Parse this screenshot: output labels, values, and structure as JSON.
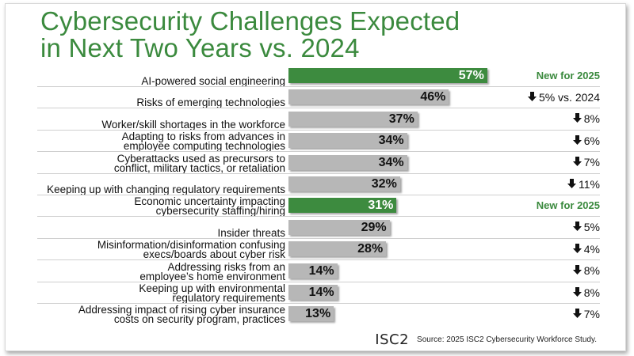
{
  "title_line1": "Cybersecurity Challenges Expected",
  "title_line2": "in Next Two Years vs. 2024",
  "footer": {
    "logo": "ISC2",
    "source": "Source: 2025 ISC2 Cybersecurity Workforce Study."
  },
  "colors": {
    "title": "#3b8a3e",
    "highlight_bar": "#3d8b3f",
    "standard_bar": "#b7b7b7",
    "new_text": "#3b8a3e"
  },
  "chart_data": {
    "type": "bar",
    "orientation": "horizontal",
    "unit": "%",
    "xlim": [
      0,
      100
    ],
    "categories": [
      [
        "AI-powered social engineering"
      ],
      [
        "Risks of emerging technologies"
      ],
      [
        "Worker/skill shortages in the workforce"
      ],
      [
        "Adapting to risks from advances in",
        "employee computing technologies"
      ],
      [
        "Cyberattacks used as precursors to",
        "conflict, military tactics, or retaliation"
      ],
      [
        "Keeping up with changing regulatory requirements"
      ],
      [
        "Economic uncertainty impacting",
        "cybersecurity staffing/hiring"
      ],
      [
        "Insider threats"
      ],
      [
        "Misinformation/disinformation confusing",
        "execs/boards about cyber risk"
      ],
      [
        "Addressing risks from an",
        "employee’s home environment"
      ],
      [
        "Keeping up with environmental",
        "regulatory requirements"
      ],
      [
        "Addressing impact of rising cyber insurance",
        "costs on security program, practices"
      ]
    ],
    "values": [
      57,
      46,
      37,
      34,
      34,
      32,
      31,
      29,
      28,
      14,
      14,
      13
    ],
    "value_labels": [
      "57%",
      "46%",
      "37%",
      "34%",
      "34%",
      "32%",
      "31%",
      "29%",
      "28%",
      "14%",
      "14%",
      "13%"
    ],
    "highlighted": [
      true,
      false,
      false,
      false,
      false,
      false,
      true,
      false,
      false,
      false,
      false,
      false
    ],
    "change_vs_2024": [
      "New for 2025",
      "5% vs. 2024",
      " 8%",
      " 6%",
      "7%",
      " 11%",
      "New for 2025",
      " 5%",
      " 4%",
      " 8%",
      " 8%",
      " 7%"
    ],
    "change_is_new": [
      true,
      false,
      false,
      false,
      false,
      false,
      true,
      false,
      false,
      false,
      false,
      false
    ],
    "down_arrow_icon": "arrow-down-icon"
  }
}
